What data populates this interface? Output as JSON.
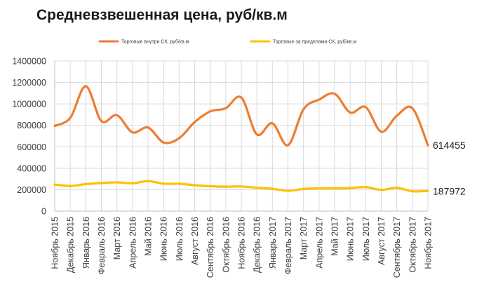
{
  "chart_data": {
    "type": "line",
    "title": "Средневзвешенная цена, руб/кв.м",
    "xlabel": "",
    "ylabel": "",
    "ylim": [
      0,
      1400000
    ],
    "yticks": [
      "0",
      "200000",
      "400000",
      "600000",
      "800000",
      "1000000",
      "1200000",
      "1400000"
    ],
    "grid": true,
    "legend_position": "top",
    "categories": [
      "Ноябрь 2015",
      "Декабрь 2015",
      "Январь 2016",
      "Февраль 2016",
      "Март 2016",
      "Апрель 2016",
      "Май 2016",
      "Июнь 2016",
      "Июль 2016",
      "Август 2016",
      "Сентябрь 2016",
      "Октябрь 2016",
      "Ноябрь 2016",
      "Декабрь 2016",
      "Январь 2017",
      "Февраль 2017",
      "Март 2017",
      "Апрель 2017",
      "Май 2017",
      "Июнь 2017",
      "Июль 2017",
      "Август 2017",
      "Сентябрь 2017",
      "Октябрь 2017",
      "Ноябрь 2017"
    ],
    "series": [
      {
        "name": "Торговые внутри СК, руб/кв.м",
        "color": "#ED7D31",
        "values": [
          795000,
          870000,
          1165000,
          840000,
          895000,
          735000,
          780000,
          640000,
          680000,
          830000,
          930000,
          960000,
          1060000,
          715000,
          820000,
          614000,
          950000,
          1040000,
          1095000,
          920000,
          970000,
          740000,
          890000,
          960000,
          614455
        ],
        "end_label": "614455"
      },
      {
        "name": "Торговые за пределами СК, руб/кв.м",
        "color": "#FFC000",
        "values": [
          248000,
          235000,
          252000,
          262000,
          268000,
          260000,
          280000,
          256000,
          255000,
          242000,
          232000,
          228000,
          230000,
          218000,
          208000,
          190000,
          207000,
          212000,
          213000,
          215000,
          225000,
          198000,
          218000,
          185000,
          187972
        ],
        "end_label": "187972"
      }
    ]
  }
}
